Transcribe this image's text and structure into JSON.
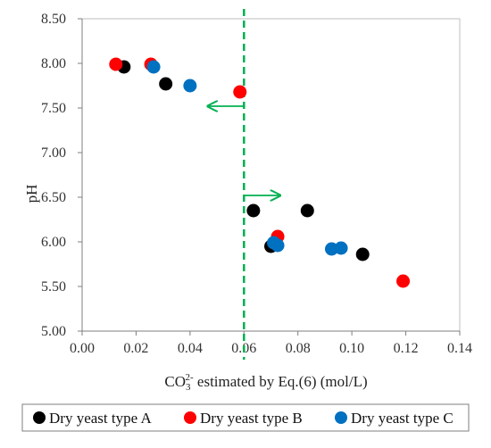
{
  "chart_data": {
    "type": "scatter",
    "xlabel": {
      "main": "CO",
      "sub": "3",
      "sup": "2-",
      "rest": " estimated by Eq.(6) (mol/L)"
    },
    "ylabel": "pH",
    "xlim": [
      0.0,
      0.14
    ],
    "ylim": [
      5.0,
      8.5
    ],
    "x_ticks": [
      "0.00",
      "0.02",
      "0.04",
      "0.06",
      "0.08",
      "0.10",
      "0.12",
      "0.14"
    ],
    "y_ticks": [
      "5.00",
      "5.50",
      "6.00",
      "6.50",
      "7.00",
      "7.50",
      "8.00",
      "8.50"
    ],
    "grid": false,
    "legend_position": "bottom",
    "threshold_line": {
      "x": 0.06,
      "color": "#00b050",
      "style": "dashed"
    },
    "arrows": [
      {
        "from": [
          0.06,
          7.52
        ],
        "to": [
          0.047,
          7.52
        ],
        "color": "#00b050"
      },
      {
        "from": [
          0.06,
          6.52
        ],
        "to": [
          0.073,
          6.52
        ],
        "color": "#00b050"
      }
    ],
    "series": [
      {
        "name": "Dry yeast type A",
        "color": "#000000",
        "points": [
          {
            "x": 0.0155,
            "y": 7.96
          },
          {
            "x": 0.031,
            "y": 7.77
          },
          {
            "x": 0.0635,
            "y": 6.35
          },
          {
            "x": 0.0835,
            "y": 6.35
          },
          {
            "x": 0.07,
            "y": 5.95
          },
          {
            "x": 0.104,
            "y": 5.86
          }
        ]
      },
      {
        "name": "Dry yeast type B",
        "color": "#ff0000",
        "points": [
          {
            "x": 0.0125,
            "y": 7.99
          },
          {
            "x": 0.0255,
            "y": 7.99
          },
          {
            "x": 0.0585,
            "y": 7.68
          },
          {
            "x": 0.0725,
            "y": 6.06
          },
          {
            "x": 0.119,
            "y": 5.56
          }
        ]
      },
      {
        "name": "Dry yeast type C",
        "color": "#0070c0",
        "points": [
          {
            "x": 0.0265,
            "y": 7.96
          },
          {
            "x": 0.04,
            "y": 7.75
          },
          {
            "x": 0.071,
            "y": 5.99
          },
          {
            "x": 0.0725,
            "y": 5.96
          },
          {
            "x": 0.0925,
            "y": 5.92
          },
          {
            "x": 0.096,
            "y": 5.93
          }
        ]
      }
    ]
  }
}
